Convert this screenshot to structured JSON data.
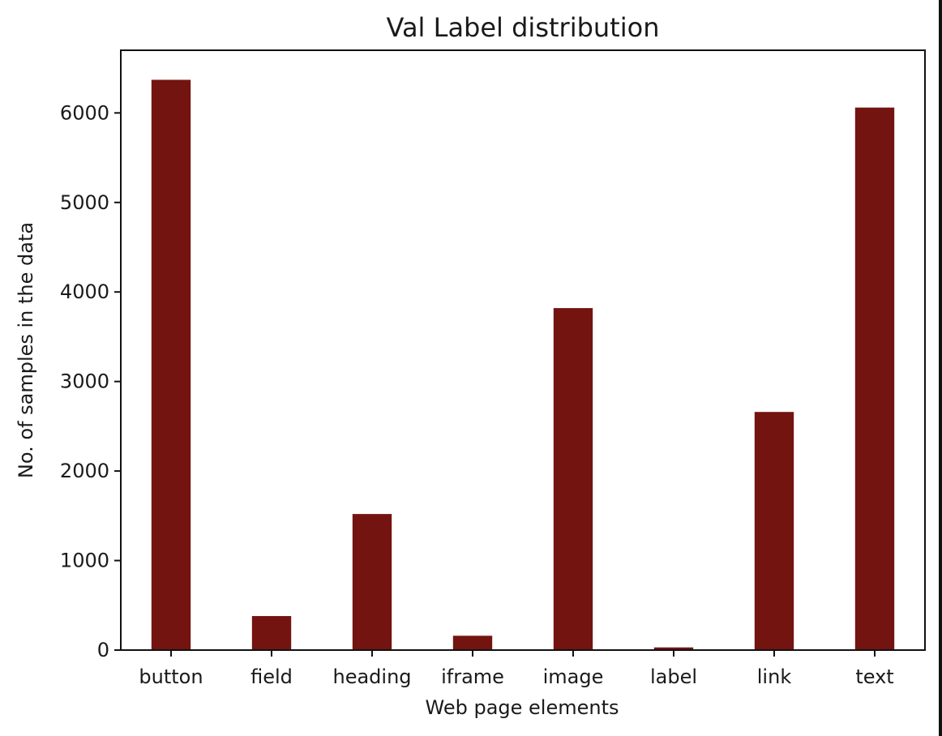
{
  "chart_data": {
    "type": "bar",
    "title": "Val Label distribution",
    "xlabel": "Web page elements",
    "ylabel": "No. of samples in the data",
    "categories": [
      "button",
      "field",
      "heading",
      "iframe",
      "image",
      "label",
      "link",
      "text"
    ],
    "values": [
      6370,
      380,
      1520,
      160,
      3820,
      30,
      2660,
      6060
    ],
    "ylim": [
      0,
      6700
    ],
    "yticks": [
      "0",
      "1000",
      "2000",
      "3000",
      "4000",
      "5000",
      "6000"
    ],
    "bar_color": "#731410",
    "grid": false,
    "legend": "none"
  }
}
